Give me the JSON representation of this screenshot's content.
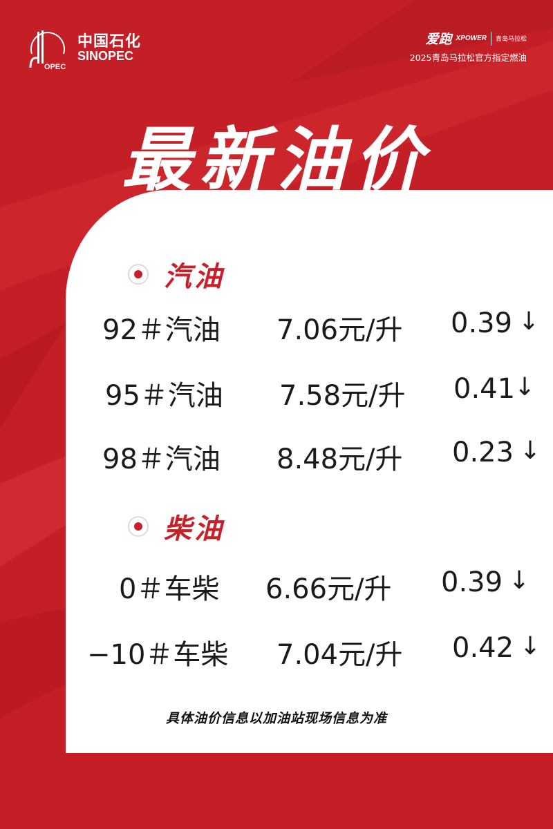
{
  "colors": {
    "brand_red": "#c41f27",
    "accent_red": "#c8202a",
    "panel": "#ffffff"
  },
  "header": {
    "sinopec_cn": "中国石化",
    "sinopec_en": "SINOPEC",
    "emblem_text": "中国石化 SINOPEC",
    "partner_aipao": "爱跑",
    "partner_xpower": "XPOWER",
    "partner_marathon": "青岛马拉松",
    "tagline": "2025青岛马拉松官方指定燃油"
  },
  "title": "最新油价",
  "sections": [
    {
      "title": "汽油",
      "rows": [
        {
          "grade": "92＃汽油",
          "price": "7.06元/升",
          "change": "0.39",
          "direction": "down"
        },
        {
          "grade": "95＃汽油",
          "price": "7.58元/升",
          "change": "0.41",
          "direction": "down"
        },
        {
          "grade": "98＃汽油",
          "price": "8.48元/升",
          "change": "0.23",
          "direction": "down"
        }
      ]
    },
    {
      "title": "柴油",
      "rows": [
        {
          "grade": "0＃车柴",
          "price": "6.66元/升",
          "change": "0.39",
          "direction": "down"
        },
        {
          "grade": "−10＃车柴",
          "price": "7.04元/升",
          "change": "0.42",
          "direction": "down"
        }
      ]
    }
  ],
  "arrow_icon": "↓",
  "note": "具体油价信息以加油站现场信息为准"
}
